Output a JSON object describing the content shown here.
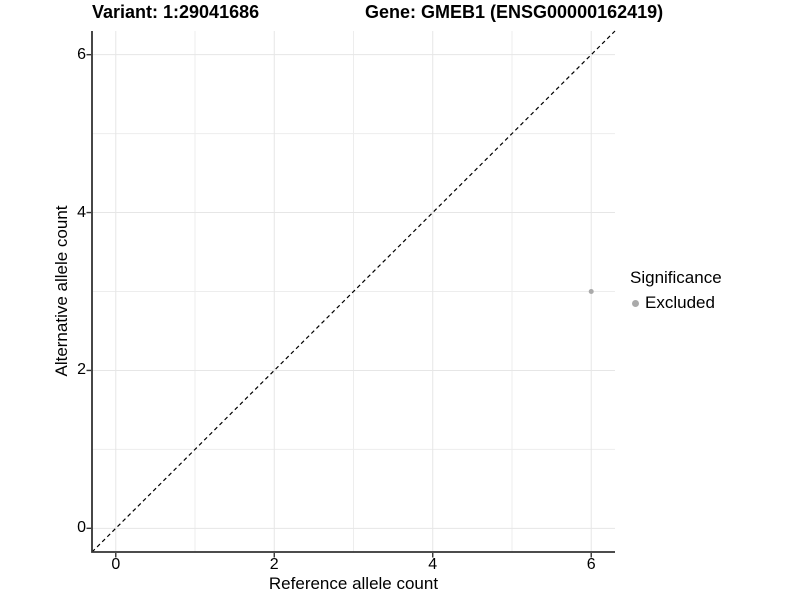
{
  "chart_data": {
    "type": "scatter",
    "titles": {
      "left": "Variant: 1:29041686",
      "right": "Gene: GMEB1 (ENSG00000162419)"
    },
    "xlabel": "Reference allele count",
    "ylabel": "Alternative allele count",
    "xlim": [
      -0.3,
      6.3
    ],
    "ylim": [
      -0.3,
      6.3
    ],
    "x_major_ticks": [
      0,
      2,
      4,
      6
    ],
    "y_major_ticks": [
      0,
      2,
      4,
      6
    ],
    "x_minor_gridlines": [
      1,
      3,
      5
    ],
    "y_minor_gridlines": [
      1,
      3,
      5
    ],
    "grid": true,
    "legend_position": "right",
    "reference_line": {
      "kind": "identity",
      "style": "dashed",
      "from": [
        -0.3,
        -0.3
      ],
      "to": [
        6.3,
        6.3
      ]
    },
    "series": [
      {
        "name": "Excluded",
        "marker": "circle",
        "color": "#aaaaaa",
        "points": [
          [
            6,
            3
          ]
        ]
      }
    ],
    "legend": {
      "title": "Significance",
      "entries": [
        {
          "label": "Excluded",
          "color": "#aaaaaa"
        }
      ]
    },
    "colors": {
      "background": "#ffffff",
      "text": "#000000",
      "axis": "#333333",
      "grid_major": "#e6e6e6",
      "grid_minor": "#ededed",
      "reference_line": "#000000"
    }
  }
}
